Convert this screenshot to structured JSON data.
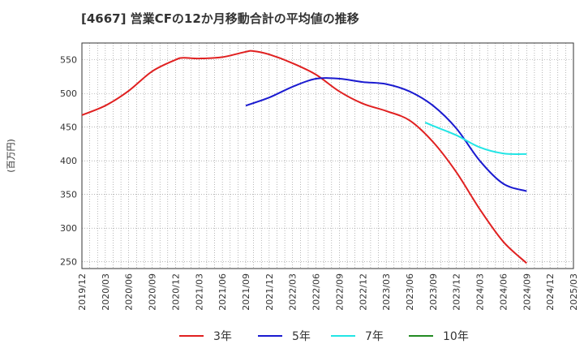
{
  "title": "[4667]  営業CFの12か月移動合計の平均値の推移",
  "chart_data": {
    "type": "line",
    "ylabel": "(百万円)",
    "ylim": [
      240,
      575
    ],
    "yticks": [
      250,
      300,
      350,
      400,
      450,
      500,
      550
    ],
    "xticks": [
      "2019/12",
      "2020/03",
      "2020/06",
      "2020/09",
      "2020/12",
      "2021/03",
      "2021/06",
      "2021/09",
      "2021/12",
      "2022/03",
      "2022/06",
      "2022/09",
      "2022/12",
      "2023/03",
      "2023/06",
      "2023/09",
      "2023/12",
      "2024/03",
      "2024/06",
      "2024/09",
      "2024/12",
      "2025/03"
    ],
    "grid": true,
    "legend_position": "bottom",
    "series": [
      {
        "name": "3年",
        "color": "#e02020",
        "x": [
          "2019/12",
          "2020/03",
          "2020/06",
          "2020/09",
          "2020/12",
          "2021/01",
          "2021/03",
          "2021/06",
          "2021/09",
          "2021/10",
          "2021/12",
          "2022/03",
          "2022/06",
          "2022/09",
          "2022/12",
          "2023/03",
          "2023/06",
          "2023/09",
          "2023/12",
          "2024/03",
          "2024/06",
          "2024/09"
        ],
        "values": [
          468,
          482,
          504,
          533,
          550,
          553,
          552,
          554,
          562,
          563,
          558,
          545,
          528,
          503,
          485,
          474,
          460,
          428,
          383,
          328,
          280,
          248
        ]
      },
      {
        "name": "5年",
        "color": "#1a1ad0",
        "x": [
          "2021/09",
          "2021/12",
          "2022/03",
          "2022/06",
          "2022/09",
          "2022/12",
          "2023/03",
          "2023/06",
          "2023/09",
          "2023/12",
          "2024/03",
          "2024/06",
          "2024/09"
        ],
        "values": [
          482,
          494,
          510,
          522,
          522,
          517,
          514,
          503,
          482,
          448,
          400,
          366,
          355
        ]
      },
      {
        "name": "7年",
        "color": "#22e5e5",
        "x": [
          "2023/08",
          "2023/09",
          "2023/12",
          "2024/03",
          "2024/06",
          "2024/09"
        ],
        "values": [
          457,
          452,
          438,
          420,
          411,
          410
        ]
      },
      {
        "name": "10年",
        "color": "#228b22",
        "x": [],
        "values": []
      }
    ]
  }
}
